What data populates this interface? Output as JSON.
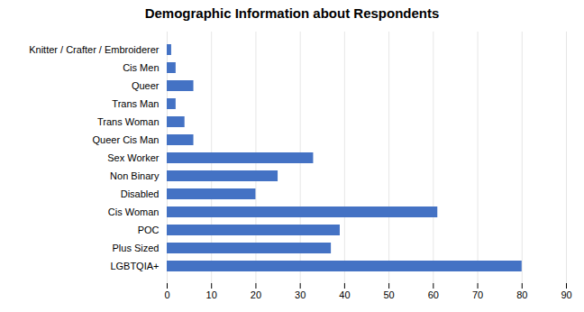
{
  "chart_data": {
    "type": "bar",
    "orientation": "horizontal",
    "title": "Demographic Information about Respondents",
    "categories": [
      "Knitter / Crafter / Embroiderer",
      "Cis Men",
      "Queer",
      "Trans Man",
      "Trans Woman",
      "Queer Cis Man",
      "Sex Worker",
      "Non Binary",
      "Disabled",
      "Cis Woman",
      "POC",
      "Plus Sized",
      "LGBTQIA+"
    ],
    "values": [
      1,
      2,
      6,
      2,
      4,
      6,
      33,
      25,
      20,
      61,
      39,
      37,
      80
    ],
    "color": "#4472C4",
    "xlim": [
      0,
      90
    ],
    "xticks": [
      0,
      10,
      20,
      30,
      40,
      50,
      60,
      70,
      80,
      90
    ],
    "grid": true
  }
}
